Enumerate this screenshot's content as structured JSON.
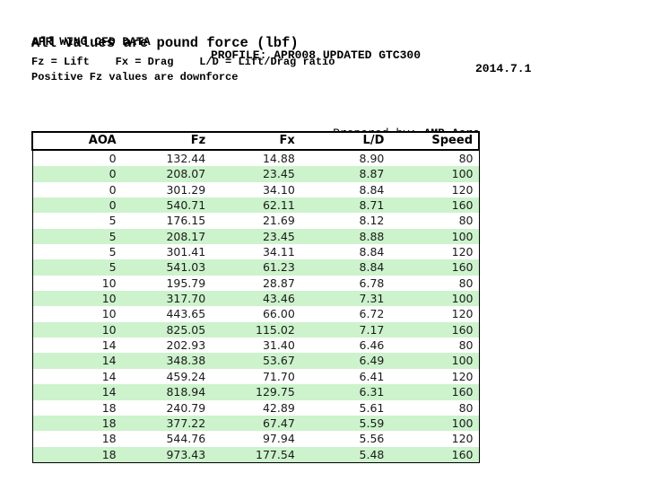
{
  "document": {
    "header": {
      "title": "APR WING CFD DATA",
      "profile": "PROFILE: APR008 UPDATED GTC300",
      "date": "2014.7.1"
    },
    "subtitle": "All values are pound force (lbf)",
    "legend": "Fz = Lift    Fx = Drag    L/D = Lift/Drag ratio",
    "note": "Positive Fz values are downforce",
    "prepared_by_label": "Prepared by: ",
    "prepared_by_value": "AMB Aero"
  },
  "colors": {
    "row_stripe": "#ccf3cc",
    "border": "#000000",
    "cell_text": "#1a1a1a",
    "background": "#ffffff"
  },
  "table": {
    "columns": [
      "AOA",
      "Fz",
      "Fx",
      "L/D",
      "Speed"
    ],
    "rows": [
      [
        "0",
        "132.44",
        "14.88",
        "8.90",
        "80"
      ],
      [
        "0",
        "208.07",
        "23.45",
        "8.87",
        "100"
      ],
      [
        "0",
        "301.29",
        "34.10",
        "8.84",
        "120"
      ],
      [
        "0",
        "540.71",
        "62.11",
        "8.71",
        "160"
      ],
      [
        "5",
        "176.15",
        "21.69",
        "8.12",
        "80"
      ],
      [
        "5",
        "208.17",
        "23.45",
        "8.88",
        "100"
      ],
      [
        "5",
        "301.41",
        "34.11",
        "8.84",
        "120"
      ],
      [
        "5",
        "541.03",
        "61.23",
        "8.84",
        "160"
      ],
      [
        "10",
        "195.79",
        "28.87",
        "6.78",
        "80"
      ],
      [
        "10",
        "317.70",
        "43.46",
        "7.31",
        "100"
      ],
      [
        "10",
        "443.65",
        "66.00",
        "6.72",
        "120"
      ],
      [
        "10",
        "825.05",
        "115.02",
        "7.17",
        "160"
      ],
      [
        "14",
        "202.93",
        "31.40",
        "6.46",
        "80"
      ],
      [
        "14",
        "348.38",
        "53.67",
        "6.49",
        "100"
      ],
      [
        "14",
        "459.24",
        "71.70",
        "6.41",
        "120"
      ],
      [
        "14",
        "818.94",
        "129.75",
        "6.31",
        "160"
      ],
      [
        "18",
        "240.79",
        "42.89",
        "5.61",
        "80"
      ],
      [
        "18",
        "377.22",
        "67.47",
        "5.59",
        "100"
      ],
      [
        "18",
        "544.76",
        "97.94",
        "5.56",
        "120"
      ],
      [
        "18",
        "973.43",
        "177.54",
        "5.48",
        "160"
      ]
    ]
  }
}
